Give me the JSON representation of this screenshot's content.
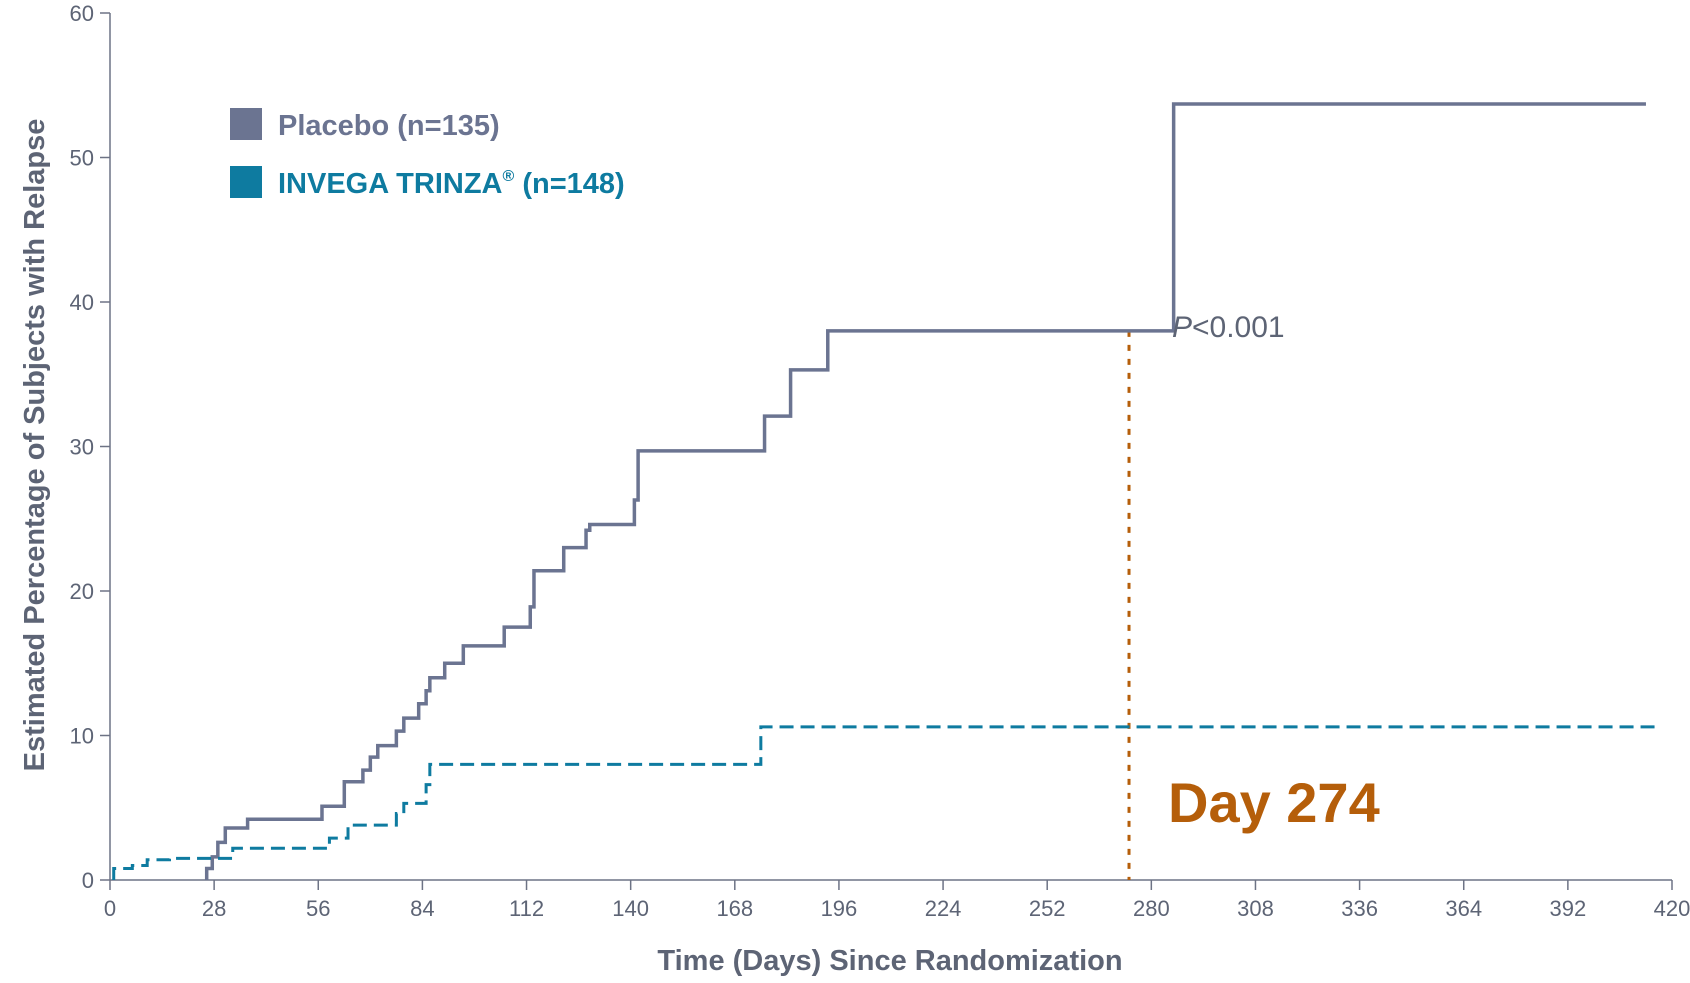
{
  "chart_data": {
    "type": "line",
    "xlabel": "Time (Days) Since Randomization",
    "ylabel": "Estimated Percentage of Subjects with Relapse",
    "xlim": [
      0,
      420
    ],
    "ylim": [
      0,
      60
    ],
    "x_ticks": [
      "0",
      "28",
      "56",
      "84",
      "112",
      "140",
      "168",
      "196",
      "224",
      "252",
      "280",
      "308",
      "336",
      "364",
      "392",
      "420"
    ],
    "y_ticks": [
      "0",
      "10",
      "20",
      "30",
      "40",
      "50",
      "60"
    ],
    "grid": false,
    "legend_position": "top-left",
    "series": [
      {
        "name": "Placebo (n=135)",
        "color": "#6b7491",
        "line_style": "solid",
        "step": true,
        "points": [
          [
            26,
            0
          ],
          [
            26,
            0.8
          ],
          [
            27.5,
            1.6
          ],
          [
            29,
            2.6
          ],
          [
            31,
            3.6
          ],
          [
            37,
            4.2
          ],
          [
            57,
            5.1
          ],
          [
            63,
            6.8
          ],
          [
            68,
            7.6
          ],
          [
            70,
            8.5
          ],
          [
            72,
            9.3
          ],
          [
            77,
            10.3
          ],
          [
            79,
            11.2
          ],
          [
            83,
            12.2
          ],
          [
            85,
            13.1
          ],
          [
            86,
            14.0
          ],
          [
            90,
            15.0
          ],
          [
            95,
            16.2
          ],
          [
            106,
            17.5
          ],
          [
            113,
            18.9
          ],
          [
            114,
            21.4
          ],
          [
            122,
            23.0
          ],
          [
            128,
            24.2
          ],
          [
            129,
            24.6
          ],
          [
            141,
            26.3
          ],
          [
            142,
            29.7
          ],
          [
            176,
            32.1
          ],
          [
            183,
            35.3
          ],
          [
            193,
            38.0
          ],
          [
            286,
            38.0
          ],
          [
            286,
            53.7
          ],
          [
            413,
            53.7
          ]
        ]
      },
      {
        "name": "INVEGA TRINZA® (n=148)",
        "color": "#0e7ba0",
        "line_style": "dashed",
        "step": true,
        "points": [
          [
            1,
            0
          ],
          [
            1,
            0.8
          ],
          [
            6,
            1.0
          ],
          [
            10,
            1.4
          ],
          [
            16,
            1.5
          ],
          [
            33,
            2.2
          ],
          [
            59,
            2.9
          ],
          [
            64,
            3.8
          ],
          [
            77,
            4.6
          ],
          [
            79,
            5.3
          ],
          [
            85,
            6.6
          ],
          [
            86,
            8.0
          ],
          [
            175,
            10.6
          ],
          [
            417,
            10.6
          ]
        ]
      }
    ],
    "annotations": [
      {
        "text": "P<0.001",
        "x": 293,
        "y": 38
      },
      {
        "text": "Day 274",
        "x": 293,
        "y": 5,
        "color": "#b55e0a"
      }
    ],
    "reference_line": {
      "x": 274,
      "color": "#b55e0a",
      "style": "dotted"
    }
  },
  "legend": {
    "placebo_label": "Placebo (n=135)",
    "placebo_color": "#6b7491",
    "trinza_label_main": "INVEGA TRINZA",
    "trinza_label_reg": "®",
    "trinza_label_rest": " (n=148)",
    "trinza_color": "#0e7ba0"
  },
  "annotation_text": {
    "p_italic": "P",
    "p_rest": "<0.001",
    "day": "Day 274",
    "day_color": "#b55e0a"
  }
}
